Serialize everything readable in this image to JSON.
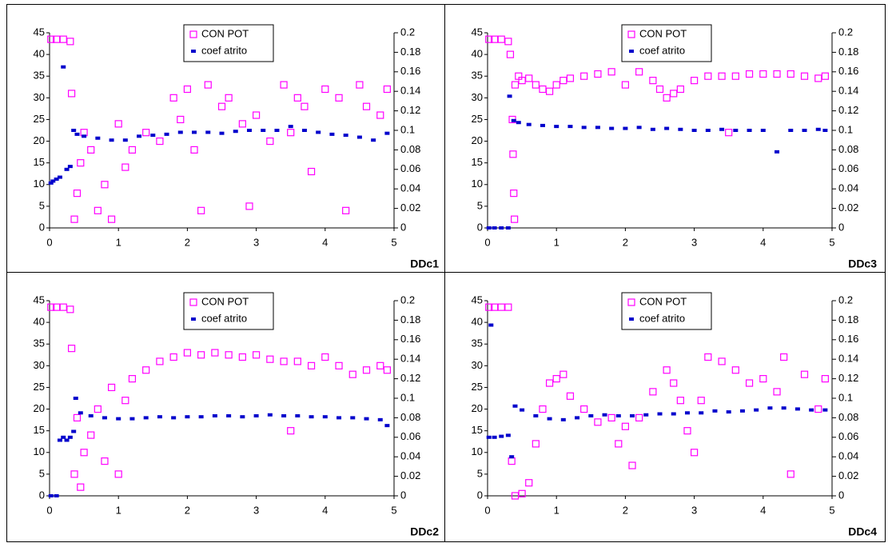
{
  "chart_data": [
    {
      "type": "scatter",
      "title": "DDc1",
      "xlim": [
        0,
        5
      ],
      "xticks": [
        0,
        1,
        2,
        3,
        4,
        5
      ],
      "ylim": [
        0,
        45
      ],
      "yticks": [
        0,
        5,
        10,
        15,
        20,
        25,
        30,
        35,
        40,
        45
      ],
      "y2lim": [
        0,
        0.2
      ],
      "y2ticks": [
        0,
        0.02,
        0.04,
        0.06,
        0.08,
        0.1,
        0.12,
        0.14,
        0.16,
        0.18,
        0.2
      ],
      "grid": false,
      "legend": "top",
      "series": [
        {
          "name": "CON POT",
          "color": "#ff00ff",
          "marker": "open-square",
          "x": [
            0.02,
            0.1,
            0.2,
            0.3,
            0.32,
            0.36,
            0.4,
            0.45,
            0.5,
            0.6,
            0.7,
            0.8,
            0.9,
            1.0,
            1.1,
            1.2,
            1.4,
            1.6,
            1.8,
            1.9,
            2.0,
            2.1,
            2.2,
            2.3,
            2.5,
            2.6,
            2.8,
            2.9,
            3.0,
            3.2,
            3.4,
            3.5,
            3.6,
            3.7,
            3.8,
            4.0,
            4.2,
            4.3,
            4.5,
            4.6,
            4.8,
            4.9
          ],
          "values": [
            43.5,
            43.5,
            43.5,
            43,
            31,
            2,
            8,
            15,
            22,
            18,
            4,
            10,
            2,
            24,
            14,
            18,
            22,
            20,
            30,
            25,
            32,
            18,
            4,
            33,
            28,
            30,
            24,
            5,
            26,
            20,
            33,
            22,
            30,
            28,
            13,
            32,
            30,
            4,
            33,
            28,
            26,
            32
          ]
        },
        {
          "name": "coef atrito",
          "color": "#0000cc",
          "marker": "filled-square",
          "axis": "y2",
          "x": [
            0.02,
            0.05,
            0.1,
            0.15,
            0.2,
            0.25,
            0.3,
            0.35,
            0.4,
            0.5,
            0.7,
            0.9,
            1.1,
            1.3,
            1.5,
            1.7,
            1.9,
            2.1,
            2.3,
            2.5,
            2.7,
            2.9,
            3.1,
            3.3,
            3.5,
            3.7,
            3.9,
            4.1,
            4.3,
            4.5,
            4.7,
            4.9
          ],
          "values": [
            0.046,
            0.048,
            0.05,
            0.052,
            0.165,
            0.06,
            0.063,
            0.1,
            0.096,
            0.094,
            0.092,
            0.09,
            0.09,
            0.094,
            0.095,
            0.096,
            0.098,
            0.098,
            0.098,
            0.097,
            0.099,
            0.1,
            0.1,
            0.1,
            0.104,
            0.1,
            0.098,
            0.096,
            0.095,
            0.093,
            0.09,
            0.097
          ]
        }
      ]
    },
    {
      "type": "scatter",
      "title": "DDc3",
      "xlim": [
        0,
        5
      ],
      "xticks": [
        0,
        1,
        2,
        3,
        4,
        5
      ],
      "ylim": [
        0,
        45
      ],
      "yticks": [
        0,
        5,
        10,
        15,
        20,
        25,
        30,
        35,
        40,
        45
      ],
      "y2lim": [
        0,
        0.2
      ],
      "y2ticks": [
        0,
        0.02,
        0.04,
        0.06,
        0.08,
        0.1,
        0.12,
        0.14,
        0.16,
        0.18,
        0.2
      ],
      "grid": false,
      "legend": "top",
      "series": [
        {
          "name": "CON POT",
          "color": "#ff00ff",
          "marker": "open-square",
          "x": [
            0.02,
            0.1,
            0.2,
            0.3,
            0.33,
            0.36,
            0.37,
            0.38,
            0.39,
            0.4,
            0.45,
            0.5,
            0.6,
            0.7,
            0.8,
            0.9,
            1.0,
            1.1,
            1.2,
            1.4,
            1.6,
            1.8,
            2.0,
            2.2,
            2.4,
            2.5,
            2.6,
            2.7,
            2.8,
            3.0,
            3.2,
            3.4,
            3.5,
            3.6,
            3.8,
            4.0,
            4.2,
            4.4,
            4.6,
            4.8,
            4.9
          ],
          "values": [
            43.5,
            43.5,
            43.5,
            43,
            40,
            25,
            17,
            8,
            2,
            33,
            35,
            34,
            34.5,
            33,
            32,
            31.5,
            33,
            34,
            34.5,
            35,
            35.5,
            36,
            33,
            36,
            34,
            32,
            30,
            31,
            32,
            34,
            35,
            35,
            22,
            35,
            35.5,
            35.5,
            35.5,
            35.5,
            35,
            34.5,
            35
          ]
        },
        {
          "name": "coef atrito",
          "color": "#0000cc",
          "marker": "filled-square",
          "axis": "y2",
          "x": [
            0.02,
            0.1,
            0.2,
            0.3,
            0.32,
            0.38,
            0.45,
            0.6,
            0.8,
            1.0,
            1.2,
            1.4,
            1.6,
            1.8,
            2.0,
            2.2,
            2.4,
            2.6,
            2.8,
            3.0,
            3.2,
            3.4,
            3.6,
            3.8,
            4.0,
            4.2,
            4.4,
            4.6,
            4.8,
            4.9
          ],
          "values": [
            0,
            0,
            0,
            0,
            0.135,
            0.11,
            0.108,
            0.106,
            0.105,
            0.104,
            0.104,
            0.103,
            0.103,
            0.102,
            0.102,
            0.103,
            0.101,
            0.102,
            0.101,
            0.1,
            0.1,
            0.101,
            0.1,
            0.1,
            0.1,
            0.078,
            0.1,
            0.1,
            0.101,
            0.1
          ]
        }
      ]
    },
    {
      "type": "scatter",
      "title": "DDc2",
      "xlim": [
        0,
        5
      ],
      "xticks": [
        0,
        1,
        2,
        3,
        4,
        5
      ],
      "ylim": [
        0,
        45
      ],
      "yticks": [
        0,
        5,
        10,
        15,
        20,
        25,
        30,
        35,
        40,
        45
      ],
      "y2lim": [
        0,
        0.2
      ],
      "y2ticks": [
        0,
        0.02,
        0.04,
        0.06,
        0.08,
        0.1,
        0.12,
        0.14,
        0.16,
        0.18,
        0.2
      ],
      "grid": false,
      "legend": "top",
      "series": [
        {
          "name": "CON POT",
          "color": "#ff00ff",
          "marker": "open-square",
          "x": [
            0.02,
            0.1,
            0.2,
            0.3,
            0.32,
            0.36,
            0.4,
            0.45,
            0.5,
            0.6,
            0.7,
            0.8,
            0.9,
            1.0,
            1.1,
            1.2,
            1.4,
            1.6,
            1.8,
            2.0,
            2.2,
            2.4,
            2.6,
            2.8,
            3.0,
            3.2,
            3.4,
            3.5,
            3.6,
            3.8,
            4.0,
            4.2,
            4.4,
            4.6,
            4.8,
            4.9
          ],
          "values": [
            43.5,
            43.5,
            43.5,
            43,
            34,
            5,
            18,
            2,
            10,
            14,
            20,
            8,
            25,
            5,
            22,
            27,
            29,
            31,
            32,
            33,
            32.5,
            33,
            32.5,
            32,
            32.5,
            31.5,
            31,
            15,
            31,
            30,
            32,
            30,
            28,
            29,
            30,
            29
          ]
        },
        {
          "name": "coef atrito",
          "color": "#0000cc",
          "marker": "filled-square",
          "axis": "y2",
          "x": [
            0.02,
            0.1,
            0.15,
            0.2,
            0.25,
            0.3,
            0.35,
            0.38,
            0.45,
            0.6,
            0.8,
            1.0,
            1.2,
            1.4,
            1.6,
            1.8,
            2.0,
            2.2,
            2.4,
            2.6,
            2.8,
            3.0,
            3.2,
            3.4,
            3.6,
            3.8,
            4.0,
            4.2,
            4.4,
            4.6,
            4.8,
            4.9
          ],
          "values": [
            0,
            0,
            0.057,
            0.06,
            0.057,
            0.06,
            0.066,
            0.1,
            0.085,
            0.082,
            0.08,
            0.079,
            0.079,
            0.08,
            0.081,
            0.08,
            0.081,
            0.081,
            0.082,
            0.082,
            0.081,
            0.082,
            0.083,
            0.082,
            0.082,
            0.081,
            0.081,
            0.08,
            0.08,
            0.079,
            0.078,
            0.072
          ]
        }
      ]
    },
    {
      "type": "scatter",
      "title": "DDc4",
      "xlim": [
        0,
        5
      ],
      "xticks": [
        0,
        1,
        2,
        3,
        4,
        5
      ],
      "ylim": [
        0,
        45
      ],
      "yticks": [
        0,
        5,
        10,
        15,
        20,
        25,
        30,
        35,
        40,
        45
      ],
      "y2lim": [
        0,
        0.2
      ],
      "y2ticks": [
        0,
        0.02,
        0.04,
        0.06,
        0.08,
        0.1,
        0.12,
        0.14,
        0.16,
        0.18,
        0.2
      ],
      "grid": false,
      "legend": "top",
      "series": [
        {
          "name": "CON POT",
          "color": "#ff00ff",
          "marker": "open-square",
          "x": [
            0.02,
            0.1,
            0.2,
            0.3,
            0.35,
            0.4,
            0.5,
            0.6,
            0.7,
            0.8,
            0.9,
            1.0,
            1.1,
            1.2,
            1.4,
            1.6,
            1.8,
            1.9,
            2.0,
            2.1,
            2.2,
            2.4,
            2.6,
            2.7,
            2.8,
            2.9,
            3.0,
            3.1,
            3.2,
            3.4,
            3.6,
            3.8,
            4.0,
            4.2,
            4.3,
            4.4,
            4.6,
            4.8,
            4.9
          ],
          "values": [
            43.5,
            43.5,
            43.5,
            43.5,
            8,
            0,
            0.5,
            3,
            12,
            20,
            26,
            27,
            28,
            23,
            20,
            17,
            18,
            12,
            16,
            7,
            18,
            24,
            29,
            26,
            22,
            15,
            10,
            22,
            32,
            31,
            29,
            26,
            27,
            24,
            32,
            5,
            28,
            20,
            27
          ]
        },
        {
          "name": "coef atrito",
          "color": "#0000cc",
          "marker": "filled-square",
          "axis": "y2",
          "x": [
            0.02,
            0.05,
            0.1,
            0.2,
            0.3,
            0.35,
            0.4,
            0.5,
            0.7,
            0.9,
            1.1,
            1.3,
            1.5,
            1.7,
            1.9,
            2.1,
            2.3,
            2.5,
            2.7,
            2.9,
            3.1,
            3.3,
            3.5,
            3.7,
            3.9,
            4.1,
            4.3,
            4.5,
            4.7,
            4.9
          ],
          "values": [
            0.06,
            0.175,
            0.06,
            0.061,
            0.062,
            0.04,
            0.092,
            0.088,
            0.082,
            0.079,
            0.078,
            0.08,
            0.082,
            0.083,
            0.082,
            0.082,
            0.083,
            0.084,
            0.084,
            0.085,
            0.085,
            0.087,
            0.086,
            0.087,
            0.088,
            0.09,
            0.09,
            0.089,
            0.088,
            0.088
          ]
        }
      ]
    }
  ]
}
